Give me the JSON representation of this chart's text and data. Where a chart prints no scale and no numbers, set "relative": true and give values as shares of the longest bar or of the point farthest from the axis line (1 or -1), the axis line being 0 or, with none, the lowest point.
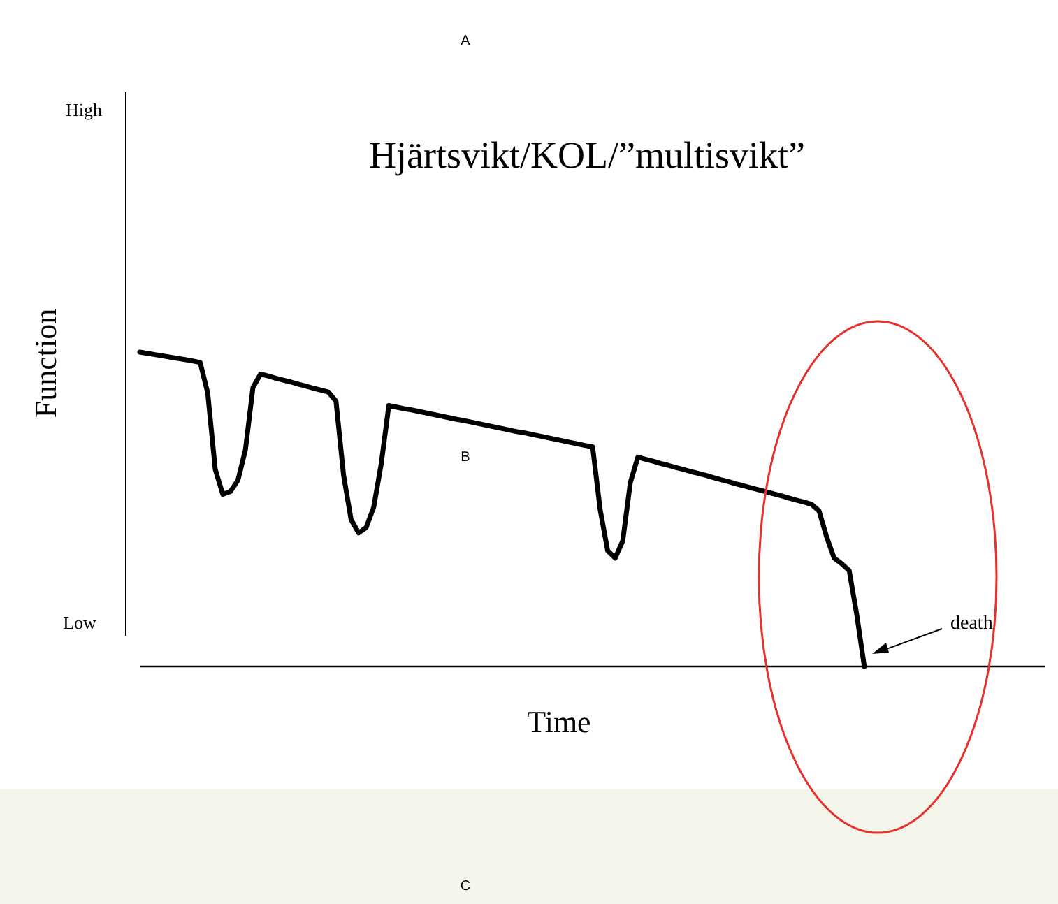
{
  "chart_data": {
    "type": "line",
    "title": "Hjärtsvikt/KOL/”multisvikt”",
    "xlabel": "Time",
    "ylabel": "Function",
    "relative": true,
    "annotations": [
      "A",
      "B",
      "C",
      "High",
      "Low",
      "death"
    ],
    "categories": [
      null,
      null,
      null,
      null,
      null,
      null,
      null,
      null,
      null,
      null,
      null,
      null,
      null,
      null,
      null,
      null,
      null,
      null,
      null,
      null,
      null,
      null,
      null,
      null,
      null,
      null,
      null,
      null,
      null,
      null,
      null,
      null,
      null,
      null,
      null,
      null,
      null,
      null,
      null,
      null,
      null,
      null,
      null,
      null,
      null,
      null,
      null,
      null,
      null,
      null,
      null,
      null,
      null,
      null,
      null,
      null,
      null,
      null,
      null,
      null,
      null,
      null,
      null,
      null,
      null,
      null,
      null,
      null,
      null,
      null,
      null,
      null,
      null,
      null,
      null,
      null,
      null,
      null,
      null,
      null,
      null,
      null,
      null,
      null,
      null,
      null,
      null,
      null,
      null,
      null,
      null,
      null,
      null,
      null,
      null,
      null,
      null,
      null,
      null,
      null,
      null,
      null,
      null,
      null,
      null,
      null,
      null,
      null,
      null,
      null,
      null,
      null,
      null,
      null,
      null,
      null,
      null,
      null,
      null,
      null,
      null
    ],
    "series": [
      {
        "color": "#000000",
        "values": [
          1.0,
          0.996,
          0.992,
          0.988,
          0.984,
          0.98,
          0.976,
          0.972,
          0.967,
          0.871,
          0.627,
          0.548,
          0.556,
          0.592,
          0.689,
          0.888,
          0.93,
          0.924,
          0.917,
          0.911,
          0.905,
          0.898,
          0.892,
          0.885,
          0.879,
          0.873,
          0.844,
          0.609,
          0.467,
          0.425,
          0.442,
          0.507,
          0.646,
          0.83,
          0.825,
          0.82,
          0.816,
          0.811,
          0.806,
          0.801,
          0.796,
          0.791,
          0.786,
          0.782,
          0.777,
          0.772,
          0.767,
          0.762,
          0.757,
          0.752,
          0.747,
          0.743,
          0.738,
          0.733,
          0.728,
          0.723,
          0.718,
          0.713,
          0.708,
          0.703,
          0.699,
          0.499,
          0.368,
          0.345,
          0.4,
          0.585,
          0.666,
          0.659,
          0.653,
          0.646,
          0.64,
          0.633,
          0.627,
          0.62,
          0.614,
          0.608,
          0.601,
          0.594,
          0.588,
          0.581,
          0.575,
          0.568,
          0.562,
          0.556,
          0.549,
          0.543,
          0.536,
          0.529,
          0.523,
          0.516,
          0.495,
          0.413,
          0.345,
          0.327,
          0.305,
          0.165,
          0.0,
          null,
          null,
          null,
          null,
          null,
          null,
          null,
          null,
          null,
          null,
          null,
          null,
          null,
          null,
          null,
          null,
          null,
          null,
          null,
          null,
          null,
          null,
          null,
          null
        ]
      }
    ],
    "grid": false,
    "marker": "none",
    "line_style": "solid"
  }
}
